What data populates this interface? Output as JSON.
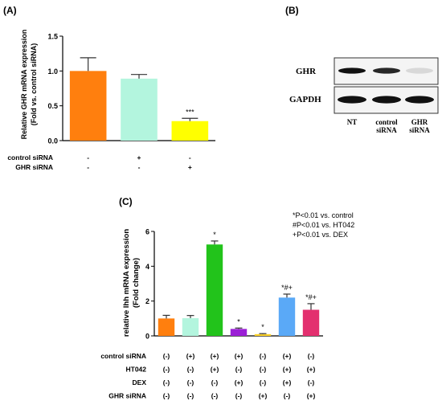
{
  "panels": {
    "a_label": "(A)",
    "b_label": "(B)",
    "c_label": "(C)"
  },
  "chart_data": [
    {
      "type": "bar",
      "panel": "A",
      "ylabel_line1": "Relative GHR mRNA expression",
      "ylabel_line2": "(Fold vs. control siRNA)",
      "ylim": [
        0,
        1.5
      ],
      "yticks": [
        "0.0",
        "0.5",
        "1.0",
        "1.5"
      ],
      "ytick_values": [
        0,
        0.5,
        1.0,
        1.5
      ],
      "values": [
        1.0,
        0.89,
        0.28
      ],
      "errors": [
        0.19,
        0.06,
        0.04
      ],
      "colors": [
        "#ff7f0e",
        "#b3f5de",
        "#ffff00"
      ],
      "annotations": [
        "",
        "",
        "***"
      ],
      "conditions": [
        {
          "label": "control siRNA",
          "values": [
            "-",
            "+",
            "-"
          ]
        },
        {
          "label": "GHR siRNA",
          "values": [
            "-",
            "-",
            "+"
          ]
        }
      ]
    },
    {
      "type": "bar",
      "panel": "C",
      "ylabel_line1": "relative Ihh mRNA expression",
      "ylabel_line2": "(Fold change)",
      "ylim": [
        0,
        6
      ],
      "yticks": [
        "0",
        "2",
        "4",
        "6"
      ],
      "ytick_values": [
        0,
        2,
        4,
        6
      ],
      "values": [
        1.0,
        1.02,
        5.25,
        0.4,
        0.1,
        2.2,
        1.5
      ],
      "errors": [
        0.18,
        0.15,
        0.2,
        0.05,
        0.03,
        0.2,
        0.35
      ],
      "colors": [
        "#ff7f0e",
        "#b3f5de",
        "#22c31b",
        "#9b1fd6",
        "#ffd42a",
        "#5aa9f7",
        "#e3306f"
      ],
      "annotations": [
        "",
        "",
        "*",
        "*",
        "*",
        "*#+",
        "*#+"
      ],
      "legend": [
        "*P<0.01 vs. control",
        "#P<0.01 vs. HT042",
        "+P<0.01 vs. DEX"
      ],
      "conditions": [
        {
          "label": "control siRNA",
          "values": [
            "(-)",
            "(+)",
            "(+)",
            "(+)",
            "(-)",
            "(+)",
            "(-)"
          ]
        },
        {
          "label": "HT042",
          "values": [
            "(-)",
            "(-)",
            "(+)",
            "(-)",
            "(-)",
            "(+)",
            "(+)"
          ]
        },
        {
          "label": "DEX",
          "values": [
            "(-)",
            "(-)",
            "(-)",
            "(+)",
            "(-)",
            "(+)",
            "(-)"
          ]
        },
        {
          "label": "GHR siRNA",
          "values": [
            "(-)",
            "(-)",
            "(-)",
            "(-)",
            "(+)",
            "(-)",
            "(+)"
          ]
        }
      ]
    }
  ],
  "blot": {
    "row_labels": [
      "GHR",
      "GAPDH"
    ],
    "lane_labels": [
      [
        "NT"
      ],
      [
        "control",
        "siRNA"
      ],
      [
        "GHR",
        "siRNA"
      ]
    ],
    "ghr_band_intensity": [
      1.0,
      0.9,
      0.12
    ],
    "gapdh_band_intensity": [
      1.0,
      1.0,
      1.0
    ]
  }
}
